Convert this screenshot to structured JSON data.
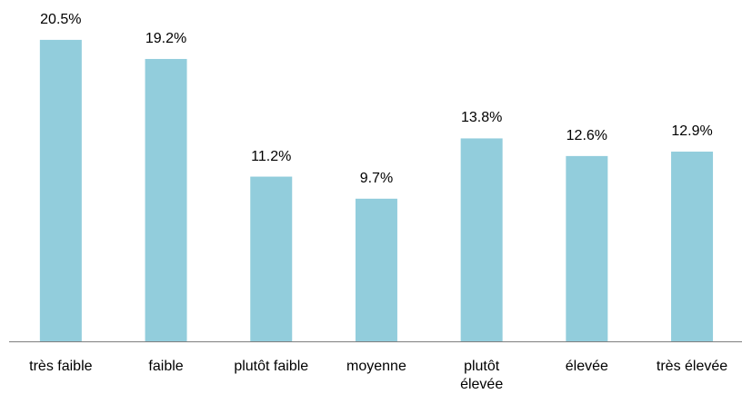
{
  "chart_data": {
    "type": "bar",
    "categories": [
      "très faible",
      "faible",
      "plutôt faible",
      "moyenne",
      "plutôt\nélevée",
      "élevée",
      "très élevée"
    ],
    "values": [
      20.5,
      19.2,
      11.2,
      9.7,
      13.8,
      12.6,
      12.9
    ],
    "value_labels": [
      "20.5%",
      "19.2%",
      "11.2%",
      "9.7%",
      "13.8%",
      "12.6%",
      "12.9%"
    ],
    "color": "#92cddc"
  }
}
